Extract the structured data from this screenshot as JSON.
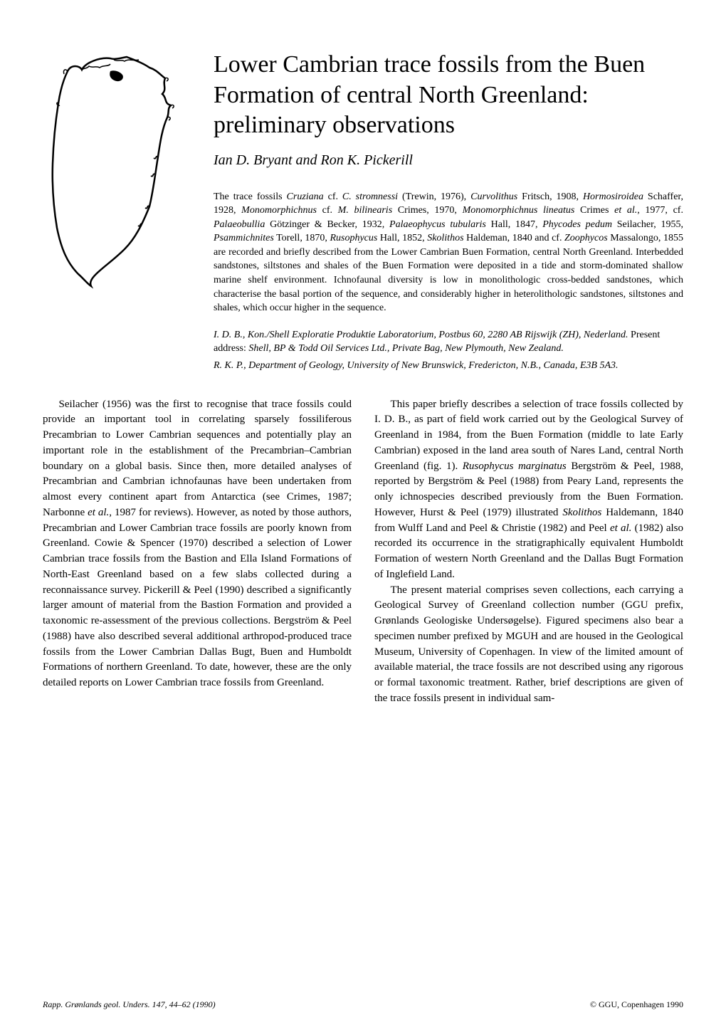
{
  "title": "Lower Cambrian trace fossils from the Buen Formation of central North Greenland: preliminary observations",
  "authors": "Ian D. Bryant and Ron K. Pickerill",
  "abstract_html": "The trace fossils <em>Cruziana</em> cf. <em>C. stromnessi</em> (Trewin, 1976), <em>Curvolithus</em> Fritsch, 1908, <em>Hormosiroidea</em> Schaffer, 1928, <em>Monomorphichnus</em> cf. <em>M. bilinearis</em> Crimes, 1970, <em>Monomorphichnus lineatus</em> Crimes <em>et al.</em>, 1977, cf. <em>Palaeobullia</em> Götzinger & Becker, 1932, <em>Palaeophycus tubularis</em> Hall, 1847, <em>Phycodes pedum</em> Seilacher, 1955, <em>Psammichnites</em> Torell, 1870, <em>Rusophycus</em> Hall, 1852, <em>Skolithos</em> Haldeman, 1840 and cf. <em>Zoophycos</em> Massalongo, 1855 are recorded and briefly described from the Lower Cambrian Buen Formation, central North Greenland. Interbedded sandstones, siltstones and shales of the Buen Formation were deposited in a tide and storm-dominated shallow marine shelf environment. Ichnofaunal diversity is low in monolithologic cross-bedded sandstones, which characterise the basal portion of the sequence, and considerably higher in heterolithologic sandstones, siltstones and shales, which occur higher in the sequence.",
  "affiliation1": "I. D. B., Kon./Shell Exploratie Produktie Laboratorium, Postbus 60, 2280 AB Rijswijk (ZH), Nederland. <span style='font-style:normal'>Present address:</span> Shell, BP & Todd Oil Services Ltd., Private Bag, New Plymouth, New Zealand.",
  "affiliation2": "R. K. P., Department of Geology, University of New Brunswick, Fredericton, N.B., Canada, E3B 5A3.",
  "body_col1_html": "<p>Seilacher (1956) was the first to recognise that trace fossils could provide an important tool in correlating sparsely fossiliferous Precambrian to Lower Cambrian sequences and potentially play an important role in the establishment of the Precambrian–Cambrian boundary on a global basis. Since then, more detailed analyses of Precambrian and Cambrian ichnofaunas have been undertaken from almost every continent apart from Antarctica (see Crimes, 1987; Narbonne <em>et al.</em>, 1987 for reviews). However, as noted by those authors, Precambrian and Lower Cambrian trace fossils are poorly known from Greenland. Cowie & Spencer (1970) described a selection of Lower Cambrian trace fossils from the Bastion and Ella Island Formations of North-East Greenland based on a few slabs collected during a reconnaissance survey. Pickerill & Peel (1990) described a significantly larger amount of material from the Bastion Formation and provided a taxonomic re-assessment of the previous collections. Bergström & Peel (1988) have also described several additional arthropod-produced trace fossils from the Lower Cambrian Dallas Bugt, Buen and Humboldt Formations of northern Greenland. To date, however, these are the only detailed reports on Lower Cambrian trace fossils from Greenland.</p>",
  "body_col2_html": "<p>This paper briefly describes a selection of trace fossils collected by I. D. B., as part of field work carried out by the Geological Survey of Greenland in 1984, from the Buen Formation (middle to late Early Cambrian) exposed in the land area south of Nares Land, central North Greenland (fig. 1). <em>Rusophycus marginatus</em> Bergström & Peel, 1988, reported by Bergström & Peel (1988) from Peary Land, represents the only ichnospecies described previously from the Buen Formation. However, Hurst & Peel (1979) illustrated <em>Skolithos</em> Haldemann, 1840 from Wulff Land and Peel & Christie (1982) and Peel <em>et al.</em> (1982) also recorded its occurrence in the stratigraphically equivalent Humboldt Formation of western North Greenland and the Dallas Bugt Formation of Inglefield Land.</p><p>The present material comprises seven collections, each carrying a Geological Survey of Greenland collection number (GGU prefix, Grønlands Geologiske Undersøgelse). Figured specimens also bear a specimen number prefixed by MGUH and are housed in the Geological Museum, University of Copenhagen. In view of the limited amount of available material, the trace fossils are not described using any rigorous or formal taxonomic treatment. Rather, brief descriptions are given of the trace fossils present in individual sam-</p>",
  "footer_left": "Rapp. Grønlands geol. Unders. 147, 44–62 (1990)",
  "footer_right": "© GGU, Copenhagen 1990",
  "map": {
    "stroke": "#000000",
    "stroke_width": 2,
    "fill": "none",
    "marker_fill": "#000000"
  }
}
